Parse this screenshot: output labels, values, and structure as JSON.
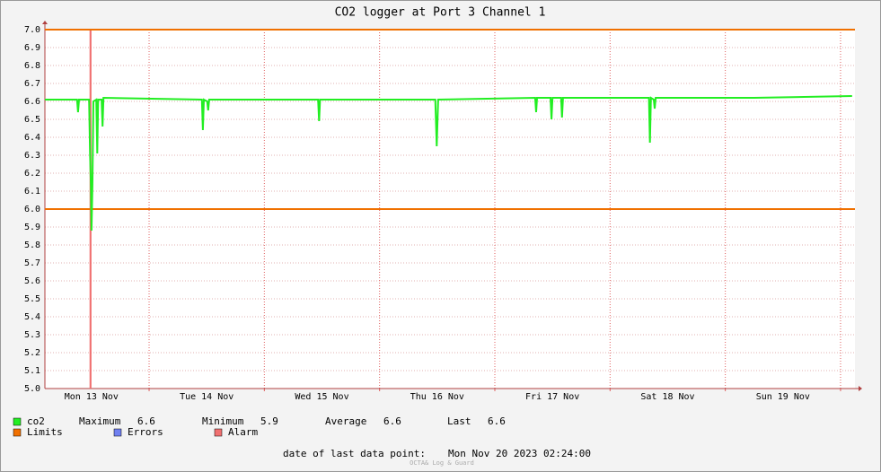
{
  "chart_data": {
    "type": "line",
    "title": "CO2 logger at Port 3 Channel 1",
    "series": [
      {
        "name": "co2",
        "color": "#22ee22",
        "x": [
          2.3,
          9.0,
          9.2,
          9.4,
          11.5,
          11.7,
          11.9,
          12.0,
          12.2,
          12.4,
          13.0,
          13.2,
          13.4,
          14.1,
          14.3,
          14.5,
          35.0,
          35.2,
          35.4,
          36.1,
          36.3,
          36.5,
          59.2,
          59.4,
          59.6,
          83.6,
          83.9,
          84.2,
          104.4,
          104.6,
          104.8,
          107.6,
          107.8,
          108.0,
          109.8,
          110.0,
          110.2,
          128.1,
          128.3,
          128.5,
          129.1,
          129.3,
          129.5,
          150.0,
          170.4
        ],
        "values": [
          6.61,
          6.61,
          6.54,
          6.61,
          6.61,
          6.3,
          6.12,
          5.88,
          6.13,
          6.6,
          6.61,
          6.31,
          6.61,
          6.61,
          6.46,
          6.62,
          6.61,
          6.44,
          6.61,
          6.6,
          6.55,
          6.61,
          6.61,
          6.49,
          6.61,
          6.61,
          6.35,
          6.61,
          6.62,
          6.54,
          6.62,
          6.62,
          6.5,
          6.62,
          6.62,
          6.51,
          6.62,
          6.62,
          6.37,
          6.62,
          6.61,
          6.56,
          6.62,
          6.62,
          6.63
        ]
      }
    ],
    "limits": {
      "name": "Limits",
      "color": "#f07000",
      "values": [
        6,
        7
      ]
    },
    "errors": {
      "name": "Errors",
      "color": "#7080f0"
    },
    "alarm": {
      "name": "Alarm",
      "color": "#f07070",
      "x": [
        11.6,
        12.0
      ]
    },
    "stats": [
      {
        "label": "Maximum",
        "value": 6.6
      },
      {
        "label": "Minimum",
        "value": 5.9
      },
      {
        "label": "Average",
        "value": 6.6
      },
      {
        "label": "Last",
        "value": 6.6
      }
    ],
    "xlim": [
      2.3,
      171
    ],
    "xticks": [
      {
        "value": 12,
        "label": "Mon 13 Nov"
      },
      {
        "value": 36,
        "label": "Tue 14 Nov"
      },
      {
        "value": 60,
        "label": "Wed 15 Nov"
      },
      {
        "value": 84,
        "label": "Thu 16 Nov"
      },
      {
        "value": 108,
        "label": "Fri 17 Nov"
      },
      {
        "value": 132,
        "label": "Sat 18 Nov"
      },
      {
        "value": 156,
        "label": "Sun 19 Nov"
      }
    ],
    "xgrid_major": [
      24,
      48,
      72,
      96,
      120,
      144,
      168
    ],
    "ylim": [
      5,
      7
    ],
    "yticks": [
      {
        "value": 5,
        "label": "5.0"
      },
      5.1,
      5.2,
      5.3,
      5.4,
      5.5,
      5.6,
      5.7,
      5.8,
      5.9,
      {
        "value": 6,
        "label": "6.0"
      },
      6.1,
      6.2,
      6.3,
      6.4,
      6.5,
      6.6,
      6.7,
      6.8,
      6.9,
      {
        "value": 7,
        "label": "7.0"
      }
    ],
    "grid": true,
    "footer": {
      "label": "date of last data point:",
      "value": "Mon Nov 20 2023 02:24:00"
    },
    "watermark": "OCTA& Log & Guard"
  }
}
